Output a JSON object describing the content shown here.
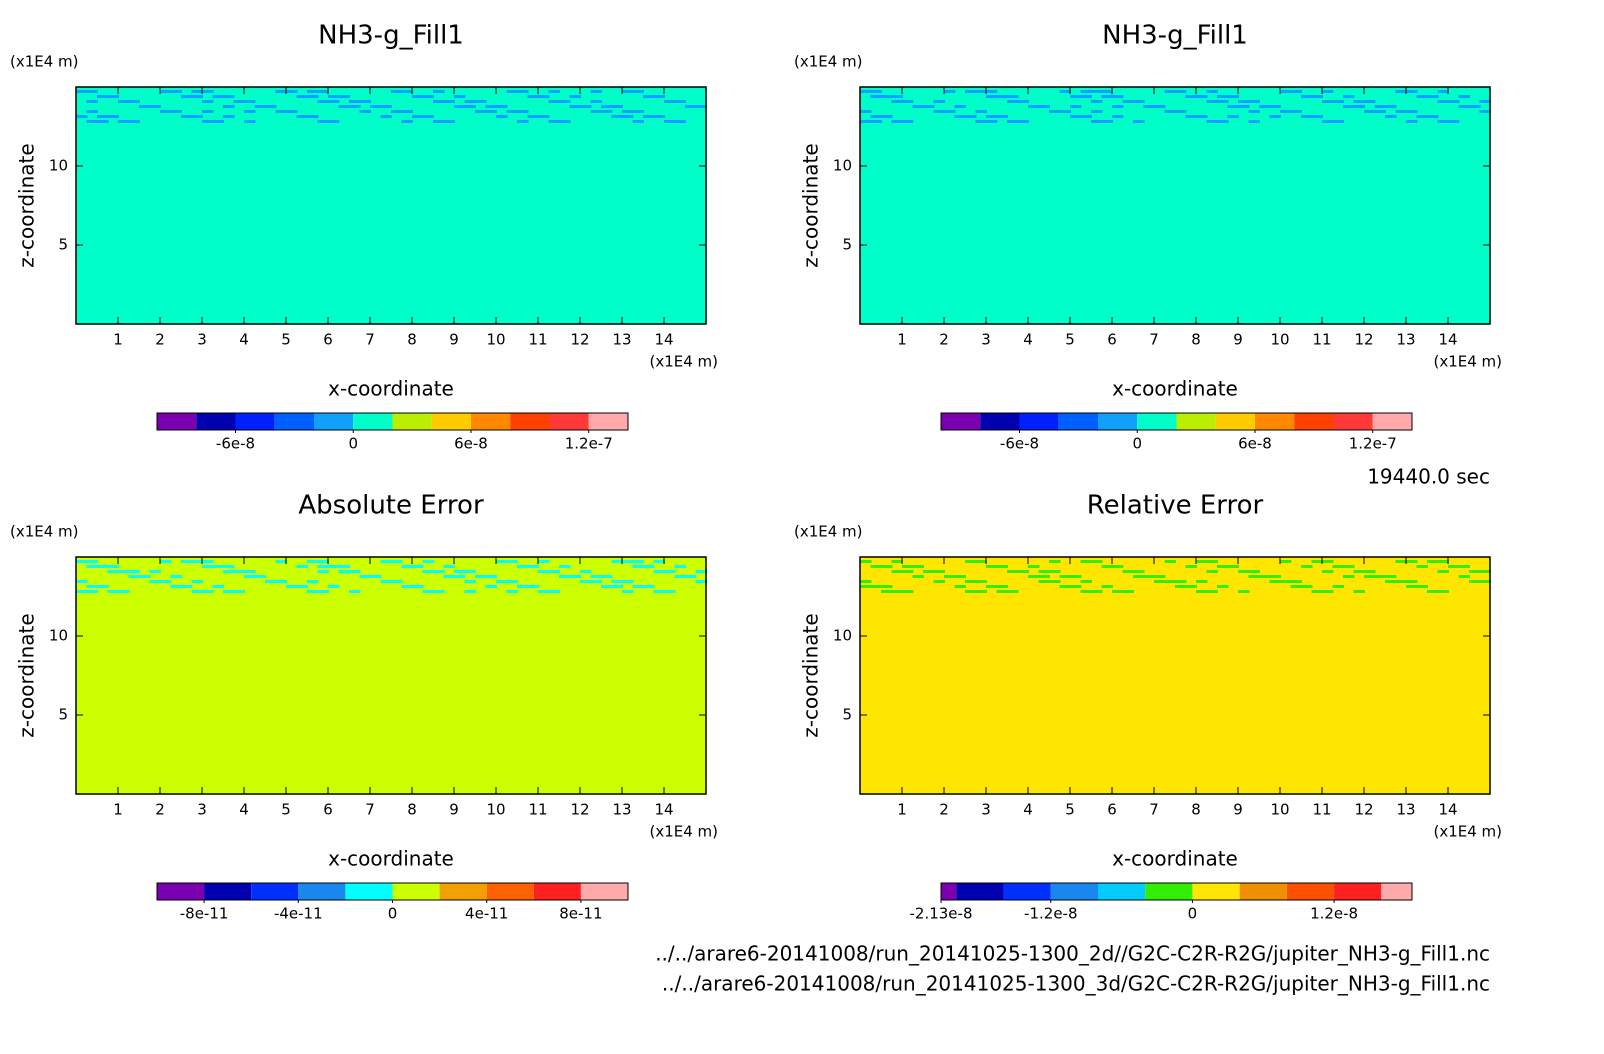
{
  "chart_data": [
    {
      "type": "contour",
      "title": "NH3-g_Fill1",
      "xlabel": "x-coordinate",
      "ylabel": "z-coordinate",
      "x_unit": "(x1E4 m)",
      "y_unit": "(x1E4 m)",
      "xlim": [
        0,
        15
      ],
      "xticks": [
        1,
        2,
        3,
        4,
        5,
        6,
        7,
        8,
        9,
        10,
        11,
        12,
        13,
        14
      ],
      "ylim": [
        0,
        15
      ],
      "yticks": [
        5,
        10
      ],
      "field_color": "#00ffc8",
      "band_color": "#10a0ff",
      "colorbar": {
        "levels": [
          -1e-07,
          -8e-08,
          -6e-08,
          -4e-08,
          -2e-08,
          0,
          2e-08,
          4e-08,
          6e-08,
          8e-08,
          1e-07,
          1.2e-07,
          1.4e-07
        ],
        "colors": [
          "#7a00b0",
          "#0000b0",
          "#0020ff",
          "#0060ff",
          "#10a0ff",
          "#00ffc8",
          "#bbee00",
          "#ffcc00",
          "#ff8800",
          "#ff4000",
          "#ff3838",
          "#ffaaaa"
        ],
        "ticks": [
          -6e-08,
          0,
          6e-08,
          1.2e-07
        ]
      }
    },
    {
      "type": "contour",
      "title": "NH3-g_Fill1",
      "xlabel": "x-coordinate",
      "ylabel": "z-coordinate",
      "x_unit": "(x1E4 m)",
      "y_unit": "(x1E4 m)",
      "xlim": [
        0,
        15
      ],
      "xticks": [
        1,
        2,
        3,
        4,
        5,
        6,
        7,
        8,
        9,
        10,
        11,
        12,
        13,
        14
      ],
      "ylim": [
        0,
        15
      ],
      "yticks": [
        5,
        10
      ],
      "field_color": "#00ffc8",
      "band_color": "#10a0ff",
      "colorbar": {
        "levels": [
          -1e-07,
          -8e-08,
          -6e-08,
          -4e-08,
          -2e-08,
          0,
          2e-08,
          4e-08,
          6e-08,
          8e-08,
          1e-07,
          1.2e-07,
          1.4e-07
        ],
        "colors": [
          "#7a00b0",
          "#0000b0",
          "#0020ff",
          "#0060ff",
          "#10a0ff",
          "#00ffc8",
          "#bbee00",
          "#ffcc00",
          "#ff8800",
          "#ff4000",
          "#ff3838",
          "#ffaaaa"
        ],
        "ticks": [
          -6e-08,
          0,
          6e-08,
          1.2e-07
        ]
      }
    },
    {
      "type": "contour",
      "title": "Absolute Error",
      "xlabel": "x-coordinate",
      "ylabel": "z-coordinate",
      "x_unit": "(x1E4 m)",
      "y_unit": "(x1E4 m)",
      "xlim": [
        0,
        15
      ],
      "xticks": [
        1,
        2,
        3,
        4,
        5,
        6,
        7,
        8,
        9,
        10,
        11,
        12,
        13,
        14
      ],
      "ylim": [
        0,
        15
      ],
      "yticks": [
        5,
        10
      ],
      "field_color": "#ccff00",
      "band_color": "#00ffff",
      "colorbar": {
        "levels": [
          -1e-10,
          -8e-11,
          -6e-11,
          -4e-11,
          -2e-11,
          0,
          2e-11,
          4e-11,
          6e-11,
          8e-11,
          1e-10
        ],
        "colors": [
          "#7a00b0",
          "#0000b0",
          "#0030ff",
          "#1888f0",
          "#00ffff",
          "#ccff00",
          "#f0a000",
          "#ff6000",
          "#ff2020",
          "#ffaaaa"
        ],
        "ticks": [
          -8e-11,
          -4e-11,
          0,
          4e-11,
          8e-11
        ]
      }
    },
    {
      "type": "contour",
      "title": "Relative Error",
      "xlabel": "x-coordinate",
      "ylabel": "z-coordinate",
      "x_unit": "(x1E4 m)",
      "y_unit": "(x1E4 m)",
      "xlim": [
        0,
        15
      ],
      "xticks": [
        1,
        2,
        3,
        4,
        5,
        6,
        7,
        8,
        9,
        10,
        11,
        12,
        13,
        14
      ],
      "ylim": [
        0,
        15
      ],
      "yticks": [
        5,
        10
      ],
      "field_color": "#ffe600",
      "band_color": "#33ee00",
      "colorbar": {
        "levels": [
          -2.13e-08,
          -2e-08,
          -1.6e-08,
          -1.2e-08,
          -8e-09,
          -4e-09,
          0,
          4e-09,
          8e-09,
          1.2e-08,
          1.6e-08,
          1.86e-08
        ],
        "colors": [
          "#7a00b0",
          "#0000b0",
          "#0030ff",
          "#1888f0",
          "#00ccff",
          "#33ee00",
          "#ffe600",
          "#f09000",
          "#ff5000",
          "#ff2020",
          "#ffaaaa"
        ],
        "ticks": [
          -2.13e-08,
          -1.2e-08,
          0,
          1.2e-08
        ]
      }
    }
  ],
  "footer": {
    "time": "19440.0 sec",
    "files": [
      "../../arare6-20141008/run_20141025-1300_2d//G2C-C2R-R2G/jupiter_NH3-g_Fill1.nc",
      "../../arare6-20141008/run_20141025-1300_3d/G2C-C2R-R2G/jupiter_NH3-g_Fill1.nc"
    ]
  }
}
